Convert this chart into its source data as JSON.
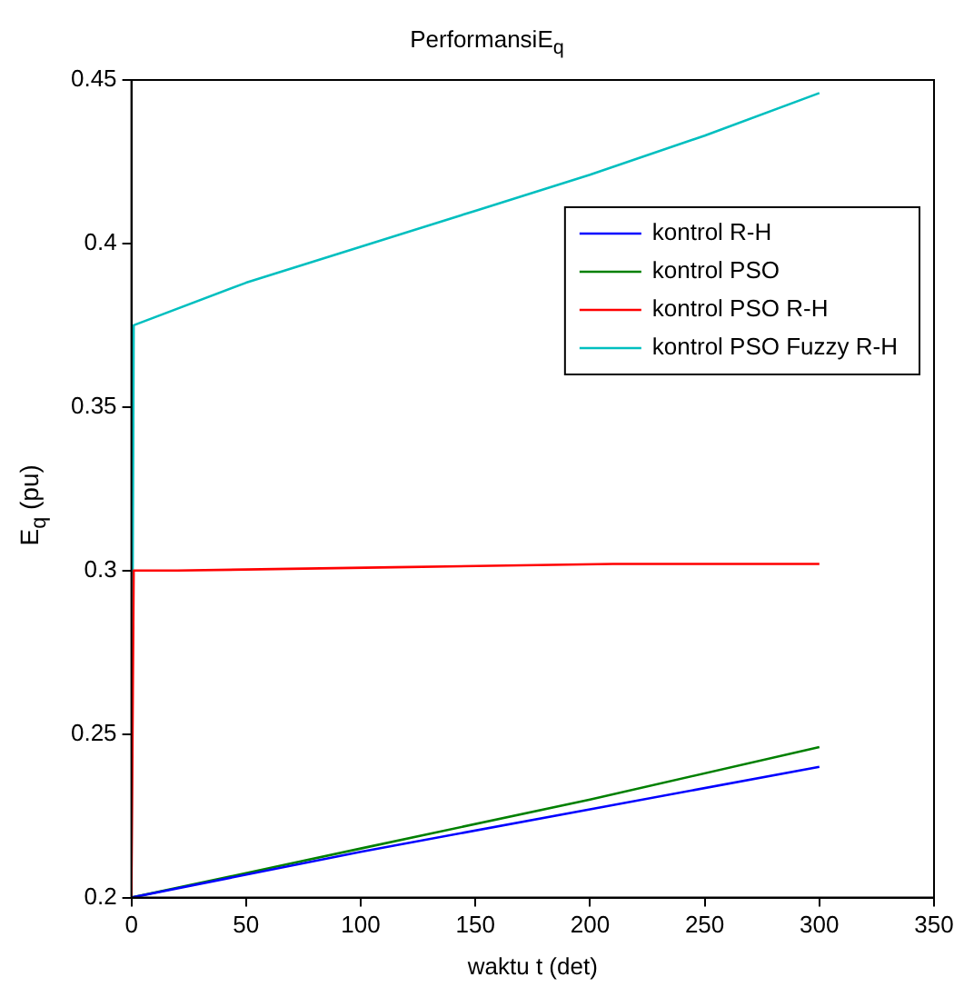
{
  "chart_data": {
    "type": "line",
    "title": "PerformansiE$_{q}$",
    "xlabel": "waktu t (det)",
    "ylabel": "E$_{q}$ (pu)",
    "xlim": [
      0,
      350
    ],
    "xticks": [
      0,
      50,
      100,
      150,
      200,
      250,
      300,
      350
    ],
    "ylim": [
      0.2,
      0.45
    ],
    "yticks": [
      0.2,
      0.25,
      0.3,
      0.35,
      0.4,
      0.45
    ],
    "grid": false,
    "legend": "top right",
    "marker": "none",
    "line_style": "solid",
    "series": [
      {
        "name": "kontrol R-H",
        "color": "#0000ff",
        "x": [
          0,
          100,
          200,
          300
        ],
        "values": [
          0.2,
          0.214,
          0.227,
          0.24
        ]
      },
      {
        "name": "kontrol PSO",
        "color": "#008000",
        "x": [
          0,
          100,
          200,
          300
        ],
        "values": [
          0.2,
          0.215,
          0.23,
          0.246
        ]
      },
      {
        "name": "kontrol PSO R-H",
        "color": "#ff0000",
        "x": [
          0,
          1,
          20,
          115,
          210,
          300
        ],
        "values": [
          0.2,
          0.3,
          0.3,
          0.301,
          0.302,
          0.302
        ]
      },
      {
        "name": "kontrol PSO Fuzzy R-H",
        "color": "#00bfbf",
        "x": [
          0,
          1,
          50,
          100,
          150,
          200,
          250,
          300
        ],
        "values": [
          0.2,
          0.375,
          0.388,
          0.399,
          0.41,
          0.421,
          0.433,
          0.446
        ]
      }
    ]
  }
}
